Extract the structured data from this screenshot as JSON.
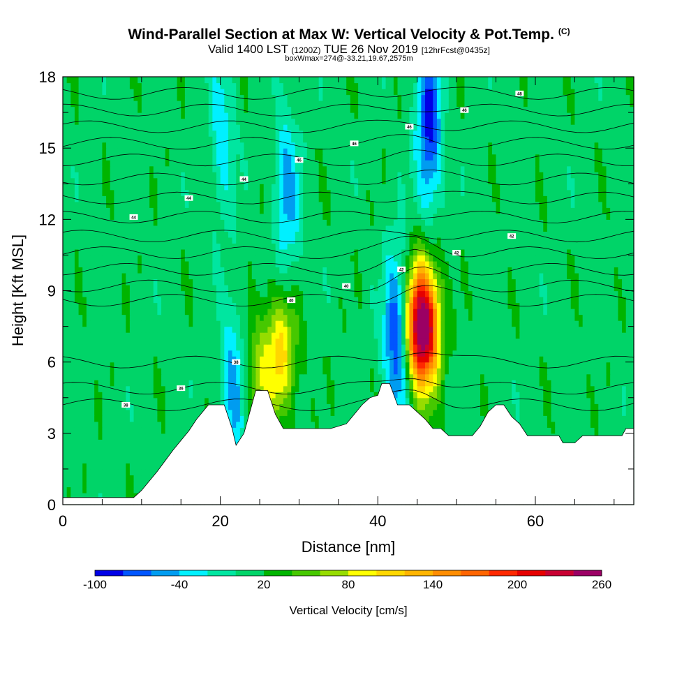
{
  "chart_data": {
    "type": "heatmap",
    "title": "Wind-Parallel Section at Max W: Vertical Velocity & Pot.Temp.",
    "copyright": "(C)",
    "subtitle": {
      "valid": "Valid 1400 LST",
      "utc": "(1200Z)",
      "date": "TUE 26 Nov 2019",
      "fcst": "[12hrFcst@0435z]"
    },
    "info": "boxWmax=274@-33.21,19.67,2575m",
    "xlabel": "Distance [nm]",
    "ylabel": "Height [Kft MSL]",
    "xlim": [
      0,
      72.5
    ],
    "ylim": [
      0,
      18
    ],
    "xticks": [
      0,
      20,
      40,
      60
    ],
    "yticks": [
      0,
      3,
      6,
      9,
      12,
      15,
      18
    ],
    "colorbar": {
      "label": "Vertical Velocity [cm/s]",
      "tick_labels": [
        "-100",
        "-40",
        "20",
        "80",
        "140",
        "200",
        "260"
      ],
      "tick_values": [
        -100,
        -40,
        20,
        80,
        140,
        200,
        260
      ],
      "levels": [
        -100,
        -80,
        -60,
        -40,
        -20,
        0,
        20,
        40,
        60,
        80,
        100,
        120,
        140,
        160,
        180,
        200,
        220,
        240,
        260
      ],
      "colors": [
        "#0000e6",
        "#0055ff",
        "#009cf0",
        "#00f0ff",
        "#00e6a0",
        "#00d468",
        "#00b400",
        "#46c800",
        "#96dc00",
        "#ffff00",
        "#ffd700",
        "#ffb400",
        "#ff8c00",
        "#ff6400",
        "#ff2800",
        "#e60000",
        "#c80032",
        "#9b0064"
      ]
    },
    "updrafts": [
      {
        "x": 45.7,
        "y": 7.5,
        "value": 274
      },
      {
        "x": 27.7,
        "y": 6.4,
        "value": 90
      },
      {
        "x": 25.0,
        "y": 5.3,
        "value": 50
      }
    ],
    "downdrafts": [
      {
        "x": 21.6,
        "y": 4.8,
        "value": -60
      },
      {
        "x": 42.3,
        "y": 7.0,
        "value": -95
      },
      {
        "x": 46.5,
        "y": 16.0,
        "value": -100
      },
      {
        "x": 28.5,
        "y": 13.0,
        "value": -60
      },
      {
        "x": 20.2,
        "y": 15.5,
        "value": -45
      }
    ],
    "theta_contours": [
      {
        "label": "38",
        "y": 4.2
      },
      {
        "label": "36",
        "y": 4.9
      },
      {
        "label": "38",
        "y": 6.0
      },
      {
        "label": "40",
        "y": 8.6
      },
      {
        "label": "40",
        "y": 9.2
      },
      {
        "label": "42",
        "y": 9.9
      },
      {
        "label": "42",
        "y": 10.6
      },
      {
        "label": "42",
        "y": 11.3
      },
      {
        "label": "44",
        "y": 12.1
      },
      {
        "label": "44",
        "y": 12.9
      },
      {
        "label": "44",
        "y": 13.7
      },
      {
        "label": "46",
        "y": 14.5
      },
      {
        "label": "46",
        "y": 15.2
      },
      {
        "label": "46",
        "y": 15.9
      },
      {
        "label": "46",
        "y": 16.6
      },
      {
        "label": "48",
        "y": 17.3
      }
    ],
    "terrain": [
      [
        0,
        0.3
      ],
      [
        9,
        0.3
      ],
      [
        10,
        0.6
      ],
      [
        12,
        1.4
      ],
      [
        14,
        2.3
      ],
      [
        16,
        3.1
      ],
      [
        17,
        3.6
      ],
      [
        18.5,
        4.2
      ],
      [
        20.5,
        4.2
      ],
      [
        21.5,
        3.2
      ],
      [
        22,
        2.5
      ],
      [
        23,
        3.0
      ],
      [
        24,
        4.2
      ],
      [
        24.5,
        4.8
      ],
      [
        26,
        4.8
      ],
      [
        27,
        3.8
      ],
      [
        28,
        3.2
      ],
      [
        30,
        3.2
      ],
      [
        34,
        3.2
      ],
      [
        36,
        3.4
      ],
      [
        37,
        3.8
      ],
      [
        38,
        4.2
      ],
      [
        39,
        4.5
      ],
      [
        40,
        4.6
      ],
      [
        40.5,
        5.1
      ],
      [
        41.5,
        5.1
      ],
      [
        42.5,
        4.2
      ],
      [
        44,
        4.2
      ],
      [
        46,
        3.6
      ],
      [
        47,
        3.2
      ],
      [
        48,
        3.2
      ],
      [
        49,
        2.9
      ],
      [
        52,
        2.9
      ],
      [
        53,
        3.3
      ],
      [
        54,
        3.9
      ],
      [
        55,
        4.2
      ],
      [
        56,
        4.2
      ],
      [
        57,
        3.7
      ],
      [
        58,
        3.4
      ],
      [
        59,
        2.9
      ],
      [
        63,
        2.9
      ],
      [
        63.5,
        2.6
      ],
      [
        65,
        2.6
      ],
      [
        66,
        2.9
      ],
      [
        71,
        2.9
      ],
      [
        71.5,
        3.2
      ],
      [
        72.5,
        3.2
      ]
    ]
  }
}
